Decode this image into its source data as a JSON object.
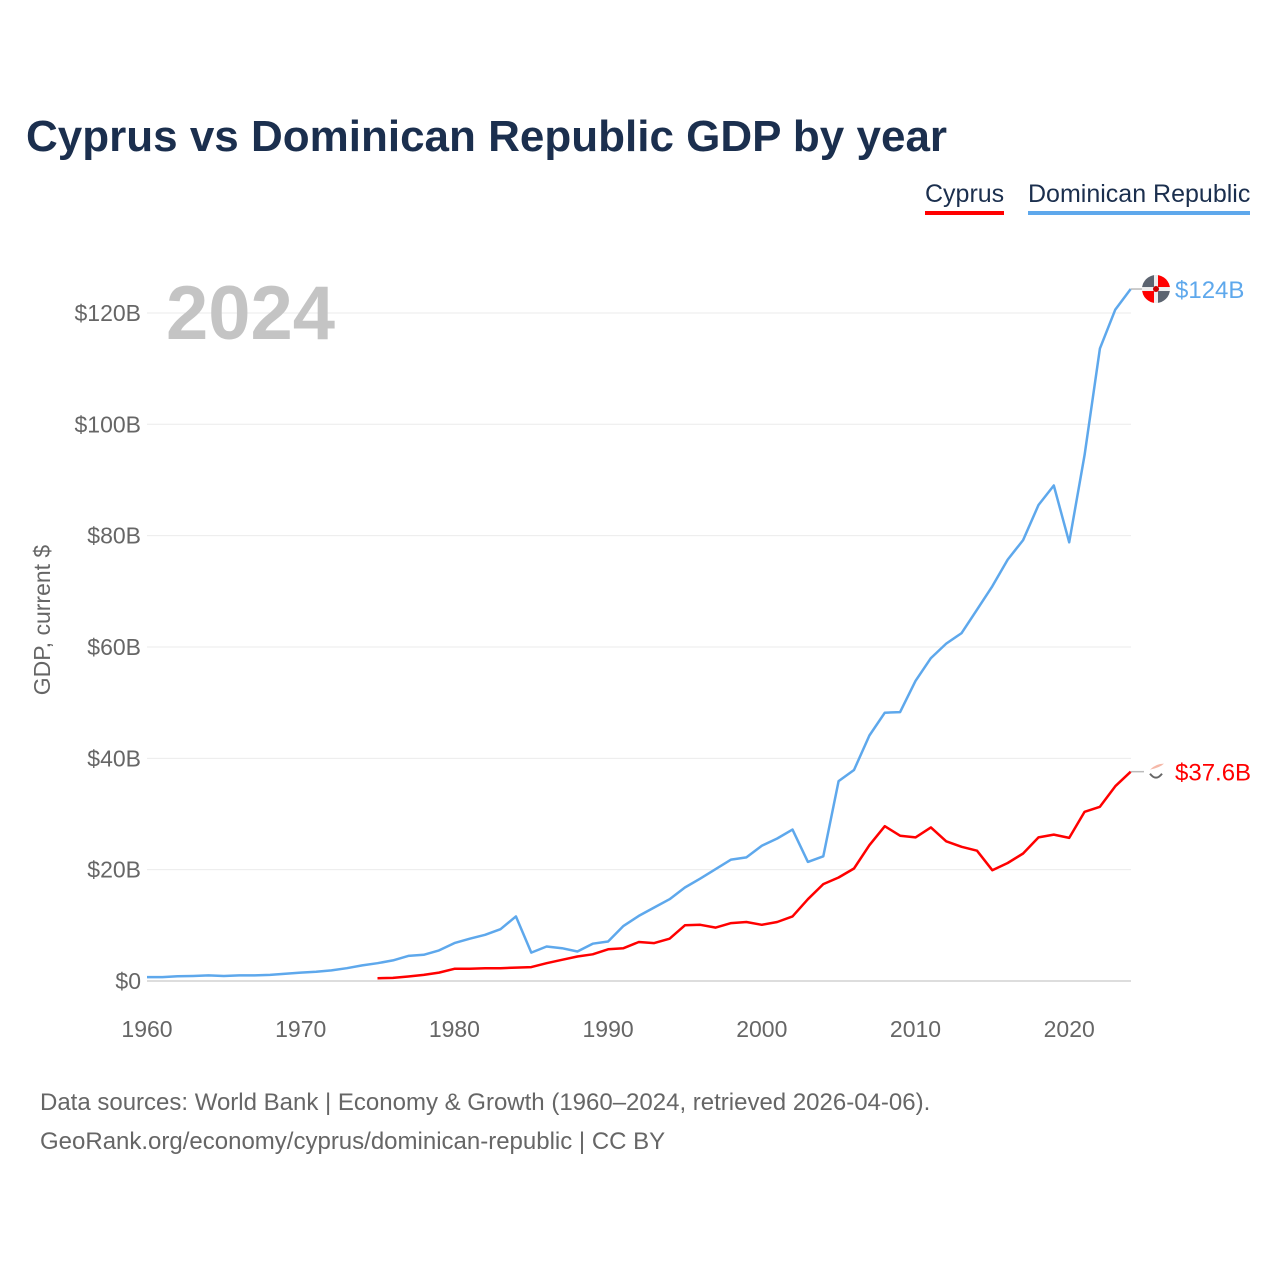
{
  "chart_data": {
    "type": "line",
    "title": "Cyprus vs Dominican Republic GDP by year",
    "ylabel": "GDP, current $",
    "xlabel": "",
    "year_label": "2024",
    "xlim": [
      1960,
      2024
    ],
    "ylim": [
      0,
      128
    ],
    "x_ticks": [
      1960,
      1970,
      1980,
      1990,
      2000,
      2010,
      2020
    ],
    "y_ticks": [
      {
        "v": 0,
        "label": "$0"
      },
      {
        "v": 20,
        "label": "$20B"
      },
      {
        "v": 40,
        "label": "$40B"
      },
      {
        "v": 60,
        "label": "$60B"
      },
      {
        "v": 80,
        "label": "$80B"
      },
      {
        "v": 100,
        "label": "$100B"
      },
      {
        "v": 120,
        "label": "$120B"
      }
    ],
    "grid": true,
    "legend_placement": "top-right",
    "series": [
      {
        "name": "Cyprus",
        "color": "#ff0000",
        "end_label": "$37.6B",
        "start_year": 1975,
        "values": [
          0.5,
          0.55,
          0.8,
          1.1,
          1.5,
          2.2,
          2.2,
          2.3,
          2.3,
          2.4,
          2.5,
          3.2,
          3.8,
          4.4,
          4.8,
          5.7,
          5.9,
          7.0,
          6.8,
          7.6,
          10.0,
          10.1,
          9.6,
          10.4,
          10.6,
          10.1,
          10.6,
          11.6,
          14.7,
          17.4,
          18.6,
          20.2,
          24.4,
          27.8,
          26.1,
          25.8,
          27.6,
          25.1,
          24.1,
          23.4,
          19.9,
          21.2,
          22.9,
          25.8,
          26.3,
          25.7,
          30.4,
          31.3,
          35.0,
          37.6
        ]
      },
      {
        "name": "Dominican Republic",
        "color": "#5ea8ec",
        "end_label": "$124B",
        "start_year": 1960,
        "values": [
          0.7,
          0.7,
          0.85,
          0.9,
          1.0,
          0.9,
          1.0,
          1.0,
          1.1,
          1.3,
          1.5,
          1.65,
          1.9,
          2.3,
          2.8,
          3.2,
          3.7,
          4.5,
          4.7,
          5.5,
          6.8,
          7.6,
          8.3,
          9.3,
          11.6,
          5.1,
          6.2,
          5.9,
          5.3,
          6.7,
          7.1,
          9.9,
          11.7,
          13.2,
          14.7,
          16.8,
          18.4,
          20.1,
          21.8,
          22.2,
          24.3,
          25.6,
          27.2,
          21.4,
          22.4,
          35.9,
          37.9,
          44.1,
          48.2,
          48.3,
          53.9,
          58.0,
          60.6,
          62.5,
          66.7,
          70.9,
          75.7,
          79.2,
          85.5,
          89.0,
          78.8,
          94.5,
          113.6,
          120.6,
          124.3
        ]
      }
    ]
  },
  "footer": {
    "line1": "Data sources: World Bank | Economy & Growth (1960–2024, retrieved 2026-04-06).",
    "line2": "GeoRank.org/economy/cyprus/dominican-republic | CC BY"
  }
}
